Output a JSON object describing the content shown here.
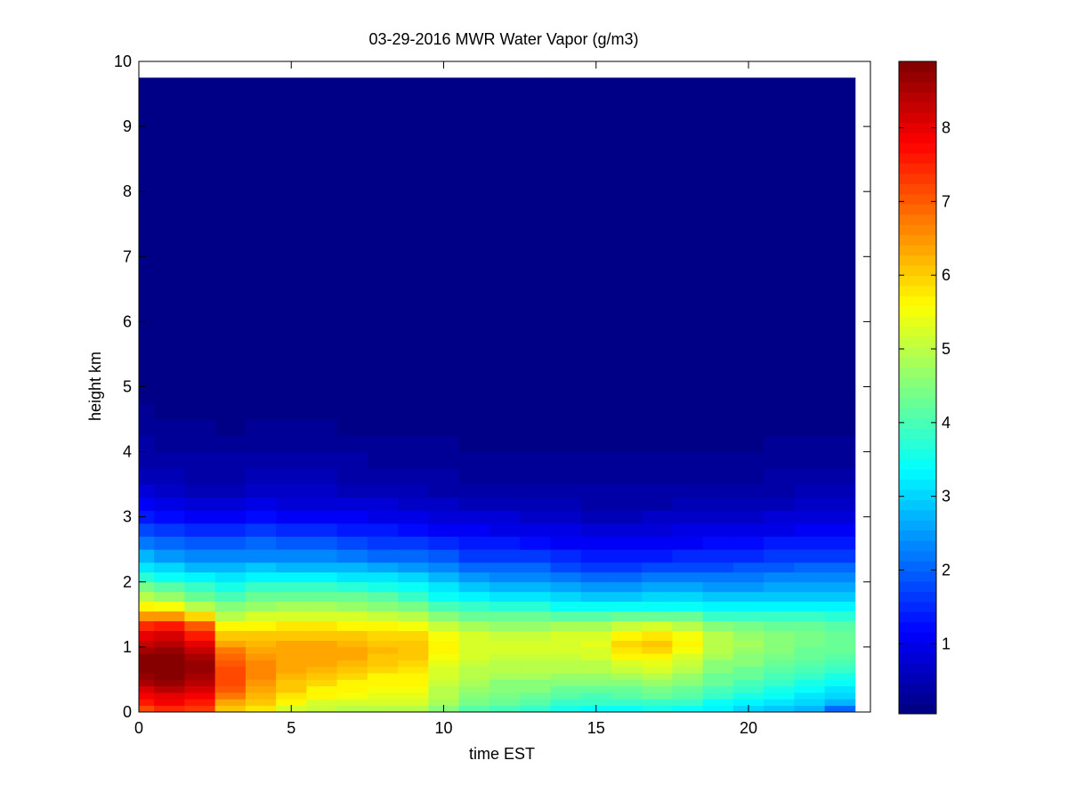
{
  "chart_data": {
    "type": "heatmap",
    "title": "03-29-2016 MWR Water Vapor (g/m3)",
    "xlabel": "time EST",
    "ylabel": "height km",
    "xlim": [
      0,
      24
    ],
    "ylim": [
      0,
      10
    ],
    "x_ticks": [
      "0",
      "5",
      "10",
      "15",
      "20"
    ],
    "x_tick_values": [
      0,
      5,
      10,
      15,
      20
    ],
    "y_ticks": [
      "0",
      "1",
      "2",
      "3",
      "4",
      "5",
      "6",
      "7",
      "8",
      "9",
      "10"
    ],
    "y_tick_values": [
      0,
      1,
      2,
      3,
      4,
      5,
      6,
      7,
      8,
      9,
      10
    ],
    "colorbar": {
      "min": 0.05,
      "max": 8.9,
      "ticks": [
        "1",
        "2",
        "3",
        "4",
        "5",
        "6",
        "7",
        "8"
      ],
      "tick_values": [
        1,
        2,
        3,
        4,
        5,
        6,
        7,
        8
      ],
      "colormap": "jet"
    },
    "data_extent": {
      "x": [
        0,
        23.5
      ],
      "y": [
        0,
        9.75
      ]
    },
    "time_bins": [
      0,
      0.5,
      1.5,
      2.5,
      3.5,
      4.5,
      5.5,
      6.5,
      7.5,
      8.5,
      9.5,
      10.5,
      11.5,
      12.5,
      13.5,
      14.5,
      15.5,
      16.5,
      17.5,
      18.5,
      19.5,
      20.5,
      21.5,
      22.5,
      23.5
    ],
    "profile_heights": [
      0,
      0.1,
      0.2,
      0.3,
      0.4,
      0.5,
      0.6,
      0.7,
      0.8,
      0.9,
      1.0,
      1.1,
      1.25,
      1.4,
      1.55,
      1.7,
      1.85,
      2.0,
      2.15,
      2.3,
      2.5,
      2.7,
      2.9,
      3.1,
      3.3,
      3.5,
      3.75,
      4.0,
      4.25,
      4.5,
      4.75,
      5.0,
      9.75
    ],
    "profiles": [
      [
        7.2,
        7.6,
        7.8,
        8.2,
        8.5,
        8.7,
        8.8,
        8.9,
        8.8,
        8.6,
        8.3,
        8.0,
        7.5,
        6.5,
        5.7,
        5.0,
        4.4,
        3.7,
        3.2,
        2.7,
        2.2,
        1.8,
        1.4,
        1.1,
        0.8,
        0.6,
        0.45,
        0.35,
        0.28,
        0.2,
        0.12,
        0.06,
        0.05
      ],
      [
        7.5,
        7.8,
        8.0,
        8.4,
        8.7,
        8.8,
        8.9,
        8.9,
        8.9,
        8.7,
        8.4,
        8.1,
        7.6,
        6.5,
        5.5,
        4.7,
        4.1,
        3.5,
        3.0,
        2.5,
        2.0,
        1.6,
        1.2,
        0.9,
        0.65,
        0.5,
        0.38,
        0.3,
        0.22,
        0.15,
        0.1,
        0.06,
        0.05
      ],
      [
        7.3,
        7.6,
        7.8,
        8.2,
        8.4,
        8.6,
        8.7,
        8.7,
        8.6,
        8.3,
        8.0,
        7.6,
        7.1,
        5.9,
        5.0,
        4.3,
        3.8,
        3.3,
        2.8,
        2.3,
        1.9,
        1.5,
        1.1,
        0.8,
        0.6,
        0.45,
        0.35,
        0.27,
        0.2,
        0.14,
        0.09,
        0.06,
        0.05
      ],
      [
        6.0,
        6.4,
        6.8,
        7.0,
        7.2,
        7.2,
        7.2,
        7.1,
        6.9,
        6.7,
        6.4,
        6.1,
        5.7,
        5.0,
        4.5,
        4.0,
        3.6,
        3.1,
        2.7,
        2.3,
        1.9,
        1.5,
        1.1,
        0.8,
        0.6,
        0.45,
        0.35,
        0.25,
        0.18,
        0.12,
        0.08,
        0.06,
        0.05
      ],
      [
        5.8,
        6.0,
        6.2,
        6.4,
        6.5,
        6.6,
        6.6,
        6.6,
        6.5,
        6.4,
        6.2,
        6.0,
        5.7,
        5.2,
        4.7,
        4.3,
        3.8,
        3.3,
        2.9,
        2.4,
        2.0,
        1.6,
        1.2,
        0.9,
        0.7,
        0.5,
        0.38,
        0.28,
        0.2,
        0.13,
        0.08,
        0.06,
        0.05
      ],
      [
        5.3,
        5.6,
        5.8,
        6.0,
        6.1,
        6.2,
        6.3,
        6.4,
        6.4,
        6.4,
        6.3,
        6.1,
        5.8,
        5.3,
        4.8,
        4.3,
        3.8,
        3.3,
        2.8,
        2.3,
        1.9,
        1.5,
        1.1,
        0.85,
        0.65,
        0.48,
        0.36,
        0.27,
        0.19,
        0.12,
        0.08,
        0.06,
        0.05
      ],
      [
        5.1,
        5.3,
        5.6,
        5.7,
        5.9,
        6.0,
        6.2,
        6.3,
        6.4,
        6.4,
        6.3,
        6.1,
        5.8,
        5.3,
        4.8,
        4.3,
        3.8,
        3.3,
        2.8,
        2.3,
        1.9,
        1.5,
        1.1,
        0.85,
        0.65,
        0.48,
        0.36,
        0.27,
        0.19,
        0.12,
        0.08,
        0.06,
        0.05
      ],
      [
        5.0,
        5.3,
        5.5,
        5.6,
        5.7,
        5.9,
        6.1,
        6.2,
        6.3,
        6.3,
        6.2,
        6.0,
        5.7,
        5.2,
        4.7,
        4.2,
        3.7,
        3.2,
        2.7,
        2.2,
        1.8,
        1.4,
        1.05,
        0.8,
        0.6,
        0.45,
        0.34,
        0.25,
        0.18,
        0.12,
        0.08,
        0.06,
        0.05
      ],
      [
        5.0,
        5.2,
        5.4,
        5.5,
        5.6,
        5.7,
        5.9,
        6.0,
        6.1,
        6.2,
        6.1,
        5.9,
        5.6,
        5.1,
        4.6,
        4.1,
        3.6,
        3.1,
        2.6,
        2.1,
        1.7,
        1.3,
        1.0,
        0.75,
        0.55,
        0.42,
        0.32,
        0.24,
        0.17,
        0.11,
        0.07,
        0.06,
        0.05
      ],
      [
        4.9,
        5.2,
        5.4,
        5.5,
        5.6,
        5.7,
        5.8,
        5.9,
        6.0,
        6.1,
        6.1,
        5.9,
        5.5,
        4.9,
        4.4,
        3.9,
        3.4,
        3.0,
        2.5,
        2.0,
        1.6,
        1.25,
        0.95,
        0.7,
        0.52,
        0.4,
        0.3,
        0.22,
        0.16,
        0.1,
        0.07,
        0.06,
        0.05
      ],
      [
        4.6,
        4.8,
        4.9,
        5.0,
        5.1,
        5.2,
        5.3,
        5.4,
        5.5,
        5.6,
        5.6,
        5.5,
        5.1,
        4.6,
        4.0,
        3.5,
        3.1,
        2.7,
        2.3,
        1.9,
        1.5,
        1.15,
        0.85,
        0.62,
        0.46,
        0.35,
        0.27,
        0.2,
        0.14,
        0.09,
        0.06,
        0.05,
        0.05
      ],
      [
        4.1,
        4.4,
        4.5,
        4.7,
        4.8,
        4.9,
        5.0,
        5.1,
        5.2,
        5.3,
        5.3,
        5.2,
        4.8,
        4.3,
        3.8,
        3.3,
        2.9,
        2.5,
        2.1,
        1.7,
        1.35,
        1.05,
        0.78,
        0.58,
        0.43,
        0.32,
        0.25,
        0.18,
        0.13,
        0.08,
        0.06,
        0.05,
        0.05
      ],
      [
        4.0,
        4.2,
        4.4,
        4.5,
        4.6,
        4.8,
        4.9,
        5.0,
        5.1,
        5.2,
        5.2,
        5.1,
        4.7,
        4.2,
        3.7,
        3.2,
        2.8,
        2.4,
        2.0,
        1.6,
        1.3,
        1.0,
        0.75,
        0.55,
        0.41,
        0.31,
        0.24,
        0.17,
        0.12,
        0.08,
        0.06,
        0.05,
        0.05
      ],
      [
        3.9,
        4.1,
        4.3,
        4.5,
        4.6,
        4.8,
        4.9,
        5.0,
        5.1,
        5.2,
        5.2,
        5.1,
        4.7,
        4.2,
        3.7,
        3.2,
        2.8,
        2.4,
        2.0,
        1.6,
        1.25,
        0.95,
        0.7,
        0.52,
        0.4,
        0.3,
        0.23,
        0.17,
        0.12,
        0.08,
        0.06,
        0.05,
        0.05
      ],
      [
        3.6,
        3.9,
        4.1,
        4.3,
        4.5,
        4.7,
        4.9,
        5.0,
        5.1,
        5.2,
        5.3,
        5.2,
        4.8,
        4.1,
        3.5,
        3.0,
        2.6,
        2.2,
        1.8,
        1.45,
        1.15,
        0.88,
        0.65,
        0.48,
        0.37,
        0.28,
        0.21,
        0.15,
        0.1,
        0.07,
        0.05,
        0.05,
        0.05
      ],
      [
        3.5,
        3.8,
        4.0,
        4.2,
        4.5,
        4.7,
        4.9,
        5.0,
        5.2,
        5.3,
        5.4,
        5.3,
        4.8,
        4.1,
        3.4,
        2.9,
        2.5,
        2.1,
        1.7,
        1.35,
        1.05,
        0.8,
        0.6,
        0.45,
        0.34,
        0.26,
        0.19,
        0.14,
        0.1,
        0.07,
        0.05,
        0.05,
        0.05
      ],
      [
        3.5,
        3.8,
        4.1,
        4.3,
        4.6,
        4.8,
        5.1,
        5.3,
        5.6,
        5.8,
        5.9,
        5.7,
        5.1,
        4.2,
        3.4,
        2.9,
        2.5,
        2.1,
        1.7,
        1.35,
        1.05,
        0.8,
        0.6,
        0.45,
        0.34,
        0.26,
        0.19,
        0.14,
        0.1,
        0.07,
        0.05,
        0.05,
        0.05
      ],
      [
        3.6,
        3.9,
        4.2,
        4.4,
        4.7,
        4.9,
        5.2,
        5.4,
        5.7,
        5.9,
        6.0,
        5.8,
        5.2,
        4.3,
        3.5,
        3.0,
        2.6,
        2.2,
        1.8,
        1.4,
        1.1,
        0.82,
        0.62,
        0.46,
        0.35,
        0.27,
        0.2,
        0.14,
        0.1,
        0.07,
        0.05,
        0.05,
        0.05
      ],
      [
        3.5,
        3.8,
        4.1,
        4.3,
        4.5,
        4.7,
        4.9,
        5.1,
        5.3,
        5.5,
        5.6,
        5.5,
        5.0,
        4.2,
        3.5,
        3.0,
        2.6,
        2.2,
        1.8,
        1.45,
        1.15,
        0.88,
        0.66,
        0.5,
        0.38,
        0.29,
        0.22,
        0.16,
        0.11,
        0.07,
        0.05,
        0.05,
        0.05
      ],
      [
        3.3,
        3.5,
        3.8,
        4.0,
        4.2,
        4.3,
        4.5,
        4.6,
        4.8,
        4.9,
        5.0,
        4.9,
        4.6,
        3.9,
        3.3,
        2.9,
        2.5,
        2.2,
        1.8,
        1.5,
        1.2,
        0.92,
        0.7,
        0.52,
        0.4,
        0.3,
        0.23,
        0.17,
        0.12,
        0.08,
        0.06,
        0.05,
        0.05
      ],
      [
        3.0,
        3.3,
        3.6,
        3.8,
        4.0,
        4.2,
        4.3,
        4.5,
        4.6,
        4.7,
        4.8,
        4.7,
        4.4,
        3.8,
        3.3,
        2.9,
        2.5,
        2.2,
        1.9,
        1.55,
        1.25,
        0.96,
        0.73,
        0.55,
        0.42,
        0.32,
        0.24,
        0.18,
        0.12,
        0.08,
        0.06,
        0.05,
        0.05
      ],
      [
        2.9,
        3.1,
        3.4,
        3.6,
        3.8,
        4.0,
        4.1,
        4.3,
        4.4,
        4.5,
        4.6,
        4.5,
        4.3,
        3.8,
        3.3,
        2.9,
        2.6,
        2.3,
        1.9,
        1.6,
        1.3,
        1.0,
        0.78,
        0.58,
        0.44,
        0.34,
        0.26,
        0.19,
        0.13,
        0.09,
        0.06,
        0.05,
        0.05
      ],
      [
        2.8,
        3.0,
        3.2,
        3.4,
        3.6,
        3.8,
        4.0,
        4.1,
        4.2,
        4.3,
        4.4,
        4.4,
        4.2,
        3.8,
        3.3,
        2.9,
        2.6,
        2.3,
        2.0,
        1.65,
        1.35,
        1.05,
        0.82,
        0.62,
        0.47,
        0.36,
        0.27,
        0.2,
        0.14,
        0.09,
        0.06,
        0.05,
        0.05
      ],
      [
        2.0,
        2.8,
        3.0,
        3.2,
        3.4,
        3.6,
        3.8,
        4.0,
        4.1,
        4.2,
        4.3,
        4.3,
        4.1,
        3.7,
        3.3,
        2.9,
        2.6,
        2.3,
        2.0,
        1.7,
        1.4,
        1.1,
        0.86,
        0.66,
        0.5,
        0.38,
        0.29,
        0.21,
        0.15,
        0.1,
        0.06,
        0.05,
        0.05
      ]
    ]
  }
}
